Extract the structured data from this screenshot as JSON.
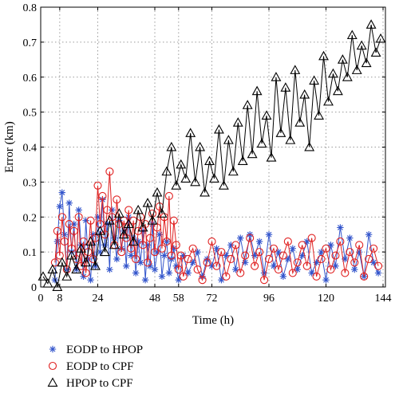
{
  "chart_data": {
    "type": "line",
    "title": "",
    "xlabel": "Time (h)",
    "ylabel": "Error (km)",
    "xlim": [
      0,
      145
    ],
    "ylim": [
      0,
      0.8
    ],
    "xticks": [
      0,
      8,
      24,
      48,
      58,
      72,
      96,
      120,
      144
    ],
    "xtick_labels": [
      "0",
      "8",
      "24",
      "48",
      "58",
      "72",
      "96",
      "120",
      "144"
    ],
    "yticks": [
      0,
      0.1,
      0.2,
      0.3,
      0.4,
      0.5,
      0.6,
      0.7,
      0.8
    ],
    "ytick_labels": [
      "0",
      "0.1",
      "0.2",
      "0.3",
      "0.4",
      "0.5",
      "0.6",
      "0.7",
      "0.8"
    ],
    "grid": true,
    "legend_position": "below",
    "series": [
      {
        "name": "EODP to HPOP",
        "color": "#3355cc",
        "marker": "asterisk",
        "x": [
          6,
          7,
          8,
          9,
          10,
          11,
          12,
          13,
          14,
          15,
          16,
          17,
          18,
          19,
          20,
          21,
          22,
          23,
          24,
          25,
          26,
          27,
          28,
          29,
          30,
          31,
          32,
          33,
          34,
          35,
          36,
          37,
          38,
          39,
          40,
          41,
          42,
          43,
          44,
          45,
          46,
          47,
          48,
          49,
          50,
          51,
          52,
          53,
          54,
          55,
          56,
          57,
          58,
          60,
          62,
          64,
          66,
          68,
          70,
          72,
          74,
          76,
          78,
          80,
          82,
          84,
          86,
          88,
          90,
          92,
          94,
          96,
          98,
          100,
          102,
          104,
          106,
          108,
          110,
          112,
          114,
          116,
          118,
          120,
          122,
          124,
          126,
          128,
          130,
          132,
          134,
          136,
          138,
          140,
          142
        ],
        "y": [
          0.02,
          0.13,
          0.23,
          0.27,
          0.15,
          0.05,
          0.24,
          0.1,
          0.18,
          0.05,
          0.22,
          0.12,
          0.03,
          0.19,
          0.08,
          0.02,
          0.15,
          0.06,
          0.2,
          0.1,
          0.25,
          0.12,
          0.18,
          0.05,
          0.22,
          0.14,
          0.08,
          0.19,
          0.11,
          0.16,
          0.06,
          0.2,
          0.09,
          0.14,
          0.04,
          0.13,
          0.07,
          0.16,
          0.02,
          0.12,
          0.06,
          0.18,
          0.05,
          0.1,
          0.15,
          0.03,
          0.09,
          0.13,
          0.04,
          0.08,
          0.11,
          0.06,
          0.02,
          0.09,
          0.04,
          0.07,
          0.1,
          0.03,
          0.08,
          0.06,
          0.11,
          0.02,
          0.09,
          0.12,
          0.05,
          0.14,
          0.07,
          0.15,
          0.09,
          0.13,
          0.04,
          0.15,
          0.06,
          0.1,
          0.03,
          0.08,
          0.11,
          0.05,
          0.09,
          0.13,
          0.04,
          0.07,
          0.1,
          0.02,
          0.12,
          0.06,
          0.17,
          0.08,
          0.14,
          0.05,
          0.1,
          0.03,
          0.15,
          0.07,
          0.04
        ]
      },
      {
        "name": "EODP to CPF",
        "color": "#e02020",
        "marker": "circle",
        "x": [
          6,
          7,
          8,
          9,
          10,
          11,
          12,
          13,
          14,
          15,
          16,
          17,
          18,
          19,
          20,
          21,
          22,
          23,
          24,
          25,
          26,
          27,
          28,
          29,
          30,
          31,
          32,
          33,
          34,
          35,
          36,
          37,
          38,
          39,
          40,
          41,
          42,
          43,
          44,
          45,
          46,
          47,
          48,
          49,
          50,
          51,
          52,
          53,
          54,
          55,
          56,
          57,
          58,
          59,
          60,
          62,
          64,
          66,
          68,
          70,
          72,
          74,
          76,
          78,
          80,
          82,
          84,
          86,
          88,
          90,
          92,
          94,
          96,
          98,
          100,
          102,
          104,
          106,
          108,
          110,
          112,
          114,
          116,
          118,
          120,
          122,
          124,
          126,
          128,
          130,
          132,
          134,
          136,
          138,
          140,
          142
        ],
        "y": [
          0.07,
          0.16,
          0.09,
          0.2,
          0.13,
          0.05,
          0.18,
          0.11,
          0.16,
          0.08,
          0.2,
          0.06,
          0.13,
          0.04,
          0.1,
          0.19,
          0.08,
          0.14,
          0.29,
          0.18,
          0.26,
          0.15,
          0.22,
          0.33,
          0.2,
          0.12,
          0.25,
          0.18,
          0.1,
          0.19,
          0.14,
          0.22,
          0.11,
          0.19,
          0.08,
          0.16,
          0.2,
          0.12,
          0.18,
          0.07,
          0.14,
          0.21,
          0.1,
          0.17,
          0.23,
          0.11,
          0.2,
          0.13,
          0.26,
          0.09,
          0.19,
          0.12,
          0.05,
          0.09,
          0.03,
          0.08,
          0.11,
          0.05,
          0.02,
          0.07,
          0.13,
          0.06,
          0.1,
          0.03,
          0.08,
          0.12,
          0.04,
          0.09,
          0.14,
          0.06,
          0.1,
          0.02,
          0.08,
          0.11,
          0.05,
          0.09,
          0.13,
          0.04,
          0.07,
          0.12,
          0.06,
          0.14,
          0.03,
          0.08,
          0.11,
          0.05,
          0.09,
          0.13,
          0.04,
          0.1,
          0.07,
          0.12,
          0.03,
          0.08,
          0.11,
          0.06
        ]
      },
      {
        "name": "HPOP to CPF",
        "color": "#000000",
        "marker": "triangle",
        "x": [
          1,
          3,
          5,
          7,
          9,
          11,
          13,
          15,
          17,
          19,
          21,
          23,
          25,
          27,
          29,
          31,
          33,
          35,
          37,
          39,
          41,
          43,
          45,
          47,
          49,
          51,
          53,
          55,
          57,
          59,
          61,
          63,
          65,
          67,
          69,
          71,
          73,
          75,
          77,
          79,
          81,
          83,
          85,
          87,
          89,
          91,
          93,
          95,
          97,
          99,
          101,
          103,
          105,
          107,
          109,
          111,
          113,
          115,
          117,
          119,
          121,
          123,
          125,
          127,
          129,
          131,
          133,
          135,
          137,
          139,
          141,
          143
        ],
        "y": [
          0.03,
          0.01,
          0.05,
          0.0,
          0.07,
          0.03,
          0.09,
          0.05,
          0.11,
          0.07,
          0.13,
          0.06,
          0.16,
          0.1,
          0.19,
          0.12,
          0.21,
          0.15,
          0.18,
          0.13,
          0.22,
          0.17,
          0.24,
          0.19,
          0.27,
          0.21,
          0.33,
          0.4,
          0.29,
          0.35,
          0.31,
          0.44,
          0.3,
          0.4,
          0.27,
          0.36,
          0.31,
          0.45,
          0.29,
          0.42,
          0.33,
          0.47,
          0.36,
          0.52,
          0.38,
          0.56,
          0.41,
          0.49,
          0.37,
          0.6,
          0.44,
          0.57,
          0.42,
          0.62,
          0.47,
          0.55,
          0.4,
          0.59,
          0.49,
          0.66,
          0.53,
          0.61,
          0.56,
          0.65,
          0.6,
          0.72,
          0.62,
          0.69,
          0.64,
          0.75,
          0.67,
          0.71
        ]
      }
    ]
  }
}
